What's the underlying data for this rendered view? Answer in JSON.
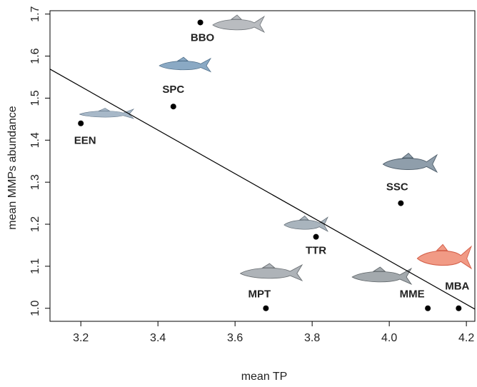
{
  "chart_data": {
    "type": "scatter",
    "xlabel": "mean TP",
    "ylabel": "mean MMPs abundance",
    "labels": [
      "BBO",
      "SPC",
      "EEN",
      "SSC",
      "TTR",
      "MPT",
      "MME",
      "MBA"
    ],
    "x": [
      3.51,
      3.44,
      3.2,
      4.03,
      3.81,
      3.68,
      4.1,
      4.18
    ],
    "y": [
      1.68,
      1.48,
      1.44,
      1.25,
      1.17,
      1.0,
      1.0,
      1.0
    ],
    "color": "#000000",
    "trend_line": {
      "x": [
        3.12,
        4.222
      ],
      "y": [
        1.569,
        0.998
      ],
      "color": "#000000"
    },
    "xlim": [
      3.12,
      4.222
    ],
    "ylim": [
      0.969,
      1.708
    ],
    "xticks": [
      3.2,
      3.4,
      3.6,
      3.8,
      {
        "value": 4,
        "label": "4.0"
      },
      4.2
    ],
    "yticks": [
      {
        "value": 1,
        "label": "1.0"
      },
      1.1,
      1.2,
      1.3,
      1.4,
      1.5,
      1.6,
      1.7
    ],
    "grid": false
  }
}
